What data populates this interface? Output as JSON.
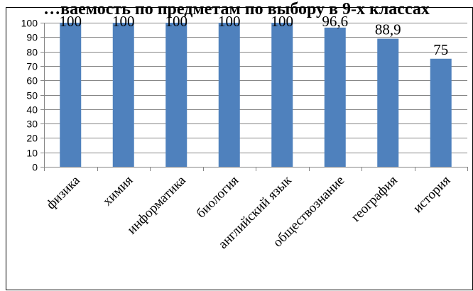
{
  "chart_data": {
    "type": "bar",
    "title": "…ваемость по предметам по выбору в 9-х классах",
    "categories": [
      "физика",
      "химия",
      "информатика",
      "биология",
      "английский язык",
      "обществознание",
      "география",
      "история"
    ],
    "values": [
      100,
      100,
      100,
      100,
      100,
      96.6,
      88.9,
      75
    ],
    "data_labels": [
      "100",
      "100",
      "100",
      "100",
      "100",
      "96,6",
      "88,9",
      "75"
    ],
    "ylim": [
      0,
      100
    ],
    "y_ticks": [
      0,
      10,
      20,
      30,
      40,
      50,
      60,
      70,
      80,
      90,
      100
    ],
    "xlabel": "",
    "ylabel": "",
    "grid": true,
    "legend": "none",
    "bar_color": "#4f81bd",
    "grid_color": "#868686"
  }
}
